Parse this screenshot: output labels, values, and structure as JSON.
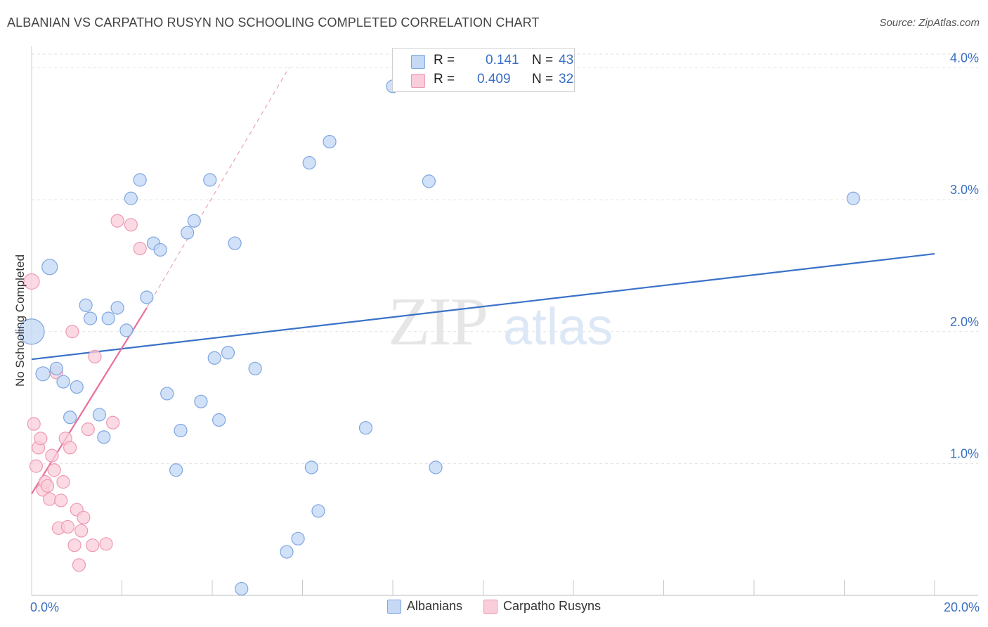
{
  "title": "ALBANIAN VS CARPATHO RUSYN NO SCHOOLING COMPLETED CORRELATION CHART",
  "source": "Source: ZipAtlas.com",
  "watermark": {
    "zip": "ZIP",
    "atlas": "atlas"
  },
  "colors": {
    "albanians_fill": "#c5d9f5",
    "albanians_stroke": "#7ea6e0",
    "albanians_line": "#3a72c8",
    "rusyns_fill": "#f9cdd9",
    "rusyns_stroke": "#ee9ab4",
    "rusyns_line": "#e8709a",
    "grid": "#e2e2e2",
    "tick_text": "#3a6fc4"
  },
  "legend": {
    "albanians": {
      "r_label": "R =",
      "r_value": "0.141",
      "n_label": "N =",
      "n_value": "43"
    },
    "rusyns": {
      "r_label": "R =",
      "r_value": "0.409",
      "n_label": "N =",
      "n_value": "32"
    }
  },
  "chart_data": {
    "type": "scatter",
    "ylabel": "No Schooling Completed",
    "xlabel": "",
    "xlim": [
      0,
      20
    ],
    "ylim": [
      0,
      4.2
    ],
    "x_tick_labels": [
      {
        "value": 0,
        "label": "0.0%"
      },
      {
        "value": 20,
        "label": "20.0%"
      }
    ],
    "x_minor_ticks": [
      2,
      4,
      6,
      8,
      10,
      12,
      14,
      16,
      18,
      20
    ],
    "y_ticks": [
      {
        "value": 1,
        "label": "1.0%"
      },
      {
        "value": 2,
        "label": "2.0%"
      },
      {
        "value": 3,
        "label": "3.0%"
      },
      {
        "value": 4,
        "label": "4.0%"
      }
    ],
    "series": [
      {
        "name": "Albanians",
        "r": 0.141,
        "n": 43,
        "trend": {
          "x0": 0,
          "y0": 1.79,
          "x1": 20,
          "y1": 2.59
        },
        "points": [
          [
            0.0,
            2.0,
            18
          ],
          [
            0.4,
            2.49,
            11
          ],
          [
            0.25,
            1.68,
            10
          ],
          [
            0.55,
            1.72,
            9
          ],
          [
            0.7,
            1.62,
            9
          ],
          [
            1.0,
            1.58,
            9
          ],
          [
            1.2,
            2.2,
            9
          ],
          [
            1.3,
            2.1,
            9
          ],
          [
            0.85,
            1.35,
            9
          ],
          [
            1.5,
            1.37,
            9
          ],
          [
            1.6,
            1.2,
            9
          ],
          [
            1.7,
            2.1,
            9
          ],
          [
            1.9,
            2.18,
            9
          ],
          [
            2.1,
            2.01,
            9
          ],
          [
            2.2,
            3.01,
            9
          ],
          [
            2.4,
            3.15,
            9
          ],
          [
            2.55,
            2.26,
            9
          ],
          [
            2.7,
            2.67,
            9
          ],
          [
            2.85,
            2.62,
            9
          ],
          [
            3.0,
            1.53,
            9
          ],
          [
            3.2,
            0.95,
            9
          ],
          [
            3.3,
            1.25,
            9
          ],
          [
            3.45,
            2.75,
            9
          ],
          [
            3.6,
            2.84,
            9
          ],
          [
            3.75,
            1.47,
            9
          ],
          [
            3.95,
            3.15,
            9
          ],
          [
            4.05,
            1.8,
            9
          ],
          [
            4.15,
            1.33,
            9
          ],
          [
            4.35,
            1.84,
            9
          ],
          [
            4.5,
            2.67,
            9
          ],
          [
            4.95,
            1.72,
            9
          ],
          [
            4.65,
            0.05,
            9
          ],
          [
            5.65,
            0.33,
            9
          ],
          [
            5.9,
            0.43,
            9
          ],
          [
            6.15,
            3.28,
            9
          ],
          [
            6.2,
            0.97,
            9
          ],
          [
            6.35,
            0.64,
            9
          ],
          [
            6.6,
            3.44,
            9
          ],
          [
            7.4,
            1.27,
            9
          ],
          [
            8.0,
            3.86,
            9
          ],
          [
            8.8,
            3.14,
            9
          ],
          [
            8.95,
            0.97,
            9
          ],
          [
            18.2,
            3.01,
            9
          ]
        ]
      },
      {
        "name": "Carpatho Rusyns",
        "r": 0.409,
        "n": 32,
        "trend": {
          "x0": 0,
          "y0": 0.77,
          "x1": 2.55,
          "y1": 2.18
        },
        "trend_ext": {
          "x0": 2.55,
          "y0": 2.18,
          "x1": 5.7,
          "y1": 4.0
        },
        "points": [
          [
            0.0,
            2.38,
            11
          ],
          [
            0.05,
            1.3,
            9
          ],
          [
            0.1,
            0.98,
            9
          ],
          [
            0.15,
            1.12,
            9
          ],
          [
            0.2,
            1.19,
            9
          ],
          [
            0.25,
            0.8,
            9
          ],
          [
            0.3,
            0.86,
            9
          ],
          [
            0.35,
            0.83,
            9
          ],
          [
            0.4,
            0.73,
            9
          ],
          [
            0.45,
            1.06,
            9
          ],
          [
            0.5,
            0.95,
            9
          ],
          [
            0.55,
            1.69,
            9
          ],
          [
            0.6,
            0.51,
            9
          ],
          [
            0.65,
            0.72,
            9
          ],
          [
            0.7,
            0.86,
            9
          ],
          [
            0.75,
            1.19,
            9
          ],
          [
            0.8,
            0.52,
            9
          ],
          [
            0.85,
            1.12,
            9
          ],
          [
            0.9,
            2.0,
            9
          ],
          [
            0.95,
            0.38,
            9
          ],
          [
            1.0,
            0.65,
            9
          ],
          [
            1.05,
            0.23,
            9
          ],
          [
            1.1,
            0.49,
            9
          ],
          [
            1.15,
            0.59,
            9
          ],
          [
            1.25,
            1.26,
            9
          ],
          [
            1.35,
            0.38,
            9
          ],
          [
            1.4,
            1.81,
            9
          ],
          [
            1.65,
            0.39,
            9
          ],
          [
            1.8,
            1.31,
            9
          ],
          [
            1.9,
            2.84,
            9
          ],
          [
            2.2,
            2.81,
            9
          ],
          [
            2.4,
            2.63,
            9
          ]
        ]
      }
    ],
    "legend_entries": [
      "Albanians",
      "Carpatho Rusyns"
    ]
  }
}
